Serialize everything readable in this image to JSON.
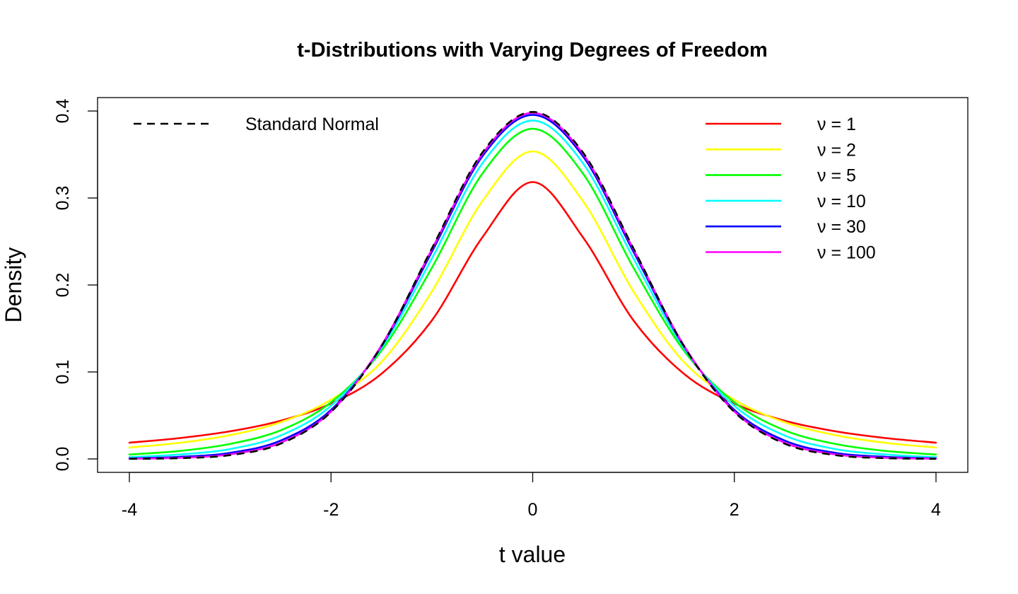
{
  "chart_data": {
    "type": "line",
    "title": "t-Distributions with Varying Degrees of Freedom",
    "xlabel": "t value",
    "ylabel": "Density",
    "xlim": [
      -4,
      4
    ],
    "ylim": [
      0,
      0.4
    ],
    "x_ticks": [
      "-4",
      "-2",
      "0",
      "2",
      "4"
    ],
    "y_ticks": [
      "0.0",
      "0.1",
      "0.2",
      "0.3",
      "0.4"
    ],
    "grid": false,
    "legends": [
      {
        "placement": "top-left",
        "entries": [
          {
            "label": "Standard Normal",
            "color": "#000000",
            "dashed": true
          }
        ]
      },
      {
        "placement": "top-right",
        "entries": [
          {
            "label": "ν = 1",
            "color": "#ff0000"
          },
          {
            "label": "ν = 2",
            "color": "#ffff00"
          },
          {
            "label": "ν = 5",
            "color": "#00ff00"
          },
          {
            "label": "ν = 10",
            "color": "#00ffff"
          },
          {
            "label": "ν = 30",
            "color": "#0000ff"
          },
          {
            "label": "ν = 100",
            "color": "#ff00ff"
          }
        ]
      }
    ],
    "x": [
      -4,
      -3.5,
      -3,
      -2.5,
      -2,
      -1.5,
      -1,
      -0.5,
      0,
      0.5,
      1,
      1.5,
      2,
      2.5,
      3,
      3.5,
      4
    ],
    "series": [
      {
        "name": "ν = 1",
        "color": "#ff0000",
        "values": [
          0.0187,
          0.024,
          0.0318,
          0.0439,
          0.0637,
          0.0979,
          0.1592,
          0.2546,
          0.3183,
          0.2546,
          0.1592,
          0.0979,
          0.0637,
          0.0439,
          0.0318,
          0.024,
          0.0187
        ]
      },
      {
        "name": "ν = 2",
        "color": "#ffff00",
        "values": [
          0.0131,
          0.0185,
          0.0274,
          0.0422,
          0.068,
          0.1114,
          0.1925,
          0.2962,
          0.3536,
          0.2962,
          0.1925,
          0.1114,
          0.068,
          0.0422,
          0.0274,
          0.0185,
          0.0131
        ]
      },
      {
        "name": "ν = 5",
        "color": "#00ff00",
        "values": [
          0.0051,
          0.0092,
          0.0173,
          0.0329,
          0.0651,
          0.1245,
          0.2197,
          0.3279,
          0.3796,
          0.3279,
          0.2197,
          0.1245,
          0.0651,
          0.0329,
          0.0173,
          0.0092,
          0.0051
        ]
      },
      {
        "name": "ν = 10",
        "color": "#00ffff",
        "values": [
          0.002,
          0.0051,
          0.0114,
          0.0269,
          0.0611,
          0.1274,
          0.2304,
          0.3397,
          0.3891,
          0.3397,
          0.2304,
          0.1274,
          0.0611,
          0.0269,
          0.0114,
          0.0051,
          0.002
        ]
      },
      {
        "name": "ν = 30",
        "color": "#0000ff",
        "values": [
          0.0006,
          0.0024,
          0.007,
          0.0211,
          0.0563,
          0.1295,
          0.2381,
          0.3477,
          0.3956,
          0.3477,
          0.2381,
          0.1295,
          0.0563,
          0.0211,
          0.007,
          0.0024,
          0.0006
        ]
      },
      {
        "name": "ν = 100",
        "color": "#ff00ff",
        "values": [
          0.0002,
          0.0013,
          0.0053,
          0.0186,
          0.0545,
          0.1304,
          0.2409,
          0.3505,
          0.3979,
          0.3505,
          0.2409,
          0.1304,
          0.0545,
          0.0186,
          0.0053,
          0.0013,
          0.0002
        ]
      },
      {
        "name": "Standard Normal",
        "color": "#000000",
        "dashed": true,
        "values": [
          0.0001,
          0.0009,
          0.0044,
          0.0175,
          0.054,
          0.1295,
          0.242,
          0.3521,
          0.3989,
          0.3521,
          0.242,
          0.1295,
          0.054,
          0.0175,
          0.0044,
          0.0009,
          0.0001
        ]
      }
    ]
  }
}
